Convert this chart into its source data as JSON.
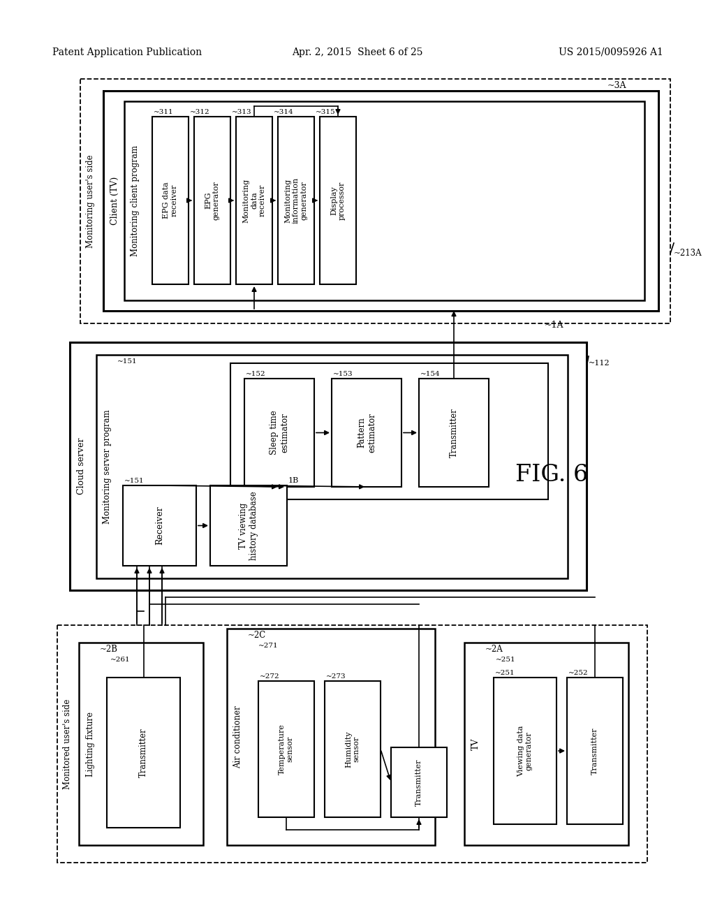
{
  "title_left": "Patent Application Publication",
  "title_center": "Apr. 2, 2015  Sheet 6 of 25",
  "title_right": "US 2015/0095926 A1",
  "fig_label": "FIG. 6",
  "background": "#ffffff",
  "line_color": "#000000"
}
